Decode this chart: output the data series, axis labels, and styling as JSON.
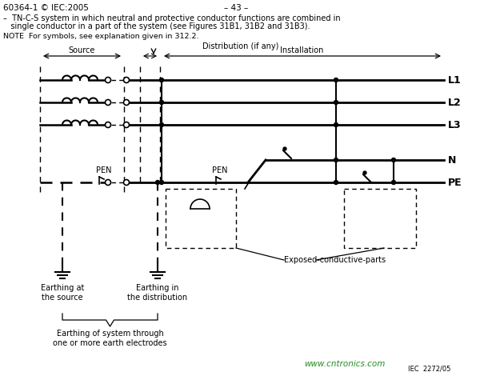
{
  "bg_color": "#ffffff",
  "text_color": "#000000",
  "header_line1": "60364-1 © IEC:2005",
  "header_center": "– 43 –",
  "header_desc1": "–  TN-C-S system in which neutral and protective conductor functions are combined in",
  "header_desc2": "   single conductor in a part of the system (see Figures 31B1, 31B2 and 31B3).",
  "note_text": "NOTE  For symbols, see explanation given in 312.2.",
  "label_distribution": "Distribution (if any)",
  "label_source": "Source",
  "label_installation": "Installation",
  "label_L1": "L1",
  "label_L2": "L2",
  "label_L3": "L3",
  "label_N": "N",
  "label_PE": "PE",
  "label_PEN1": "PEN",
  "label_PEN2": "PEN",
  "label_earth_source": "Earthing at\nthe source",
  "label_earth_dist": "Earthing in\nthe distribution",
  "label_earth_system": "Earthing of system through\none or more earth electrodes",
  "label_exposed": "Exposed-conductive-parts",
  "watermark": "www.cntronics.com",
  "iec_ref": "IEC  2272/05",
  "line_color": "#000000"
}
